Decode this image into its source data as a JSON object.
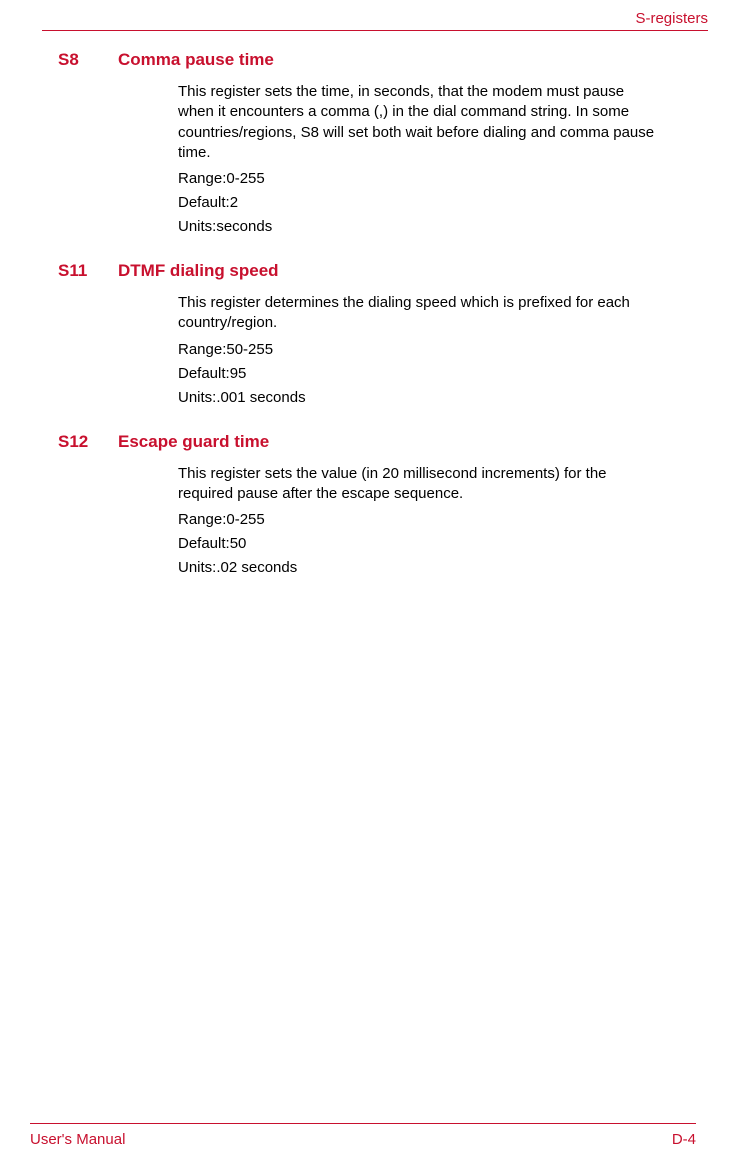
{
  "header": {
    "title": "S-registers"
  },
  "sections": [
    {
      "code": "S8",
      "title": "Comma pause time",
      "description": "This register sets the time, in seconds, that the modem must pause when it encounters a comma (,) in the dial command string. In some countries/regions, S8 will set both wait before dialing and comma pause time.",
      "range": "Range:0-255",
      "default": "Default:2",
      "units": "Units:seconds"
    },
    {
      "code": "S11",
      "title": "DTMF dialing speed",
      "description": "This register determines the dialing speed which is prefixed for each country/region.",
      "range": "Range:50-255",
      "default": "Default:95",
      "units": "Units:.001 seconds"
    },
    {
      "code": "S12",
      "title": "Escape guard time",
      "description": "This register sets the value (in 20 millisecond increments) for the required pause after the escape sequence.",
      "range": "Range:0-255",
      "default": "Default:50",
      "units": "Units:.02 seconds"
    }
  ],
  "footer": {
    "left": "User's Manual",
    "right": "D-4"
  },
  "colors": {
    "accent": "#c8102e",
    "text": "#000000",
    "background": "#ffffff"
  },
  "typography": {
    "body_fontsize": 15,
    "heading_fontsize": 17,
    "font_family": "Arial"
  }
}
